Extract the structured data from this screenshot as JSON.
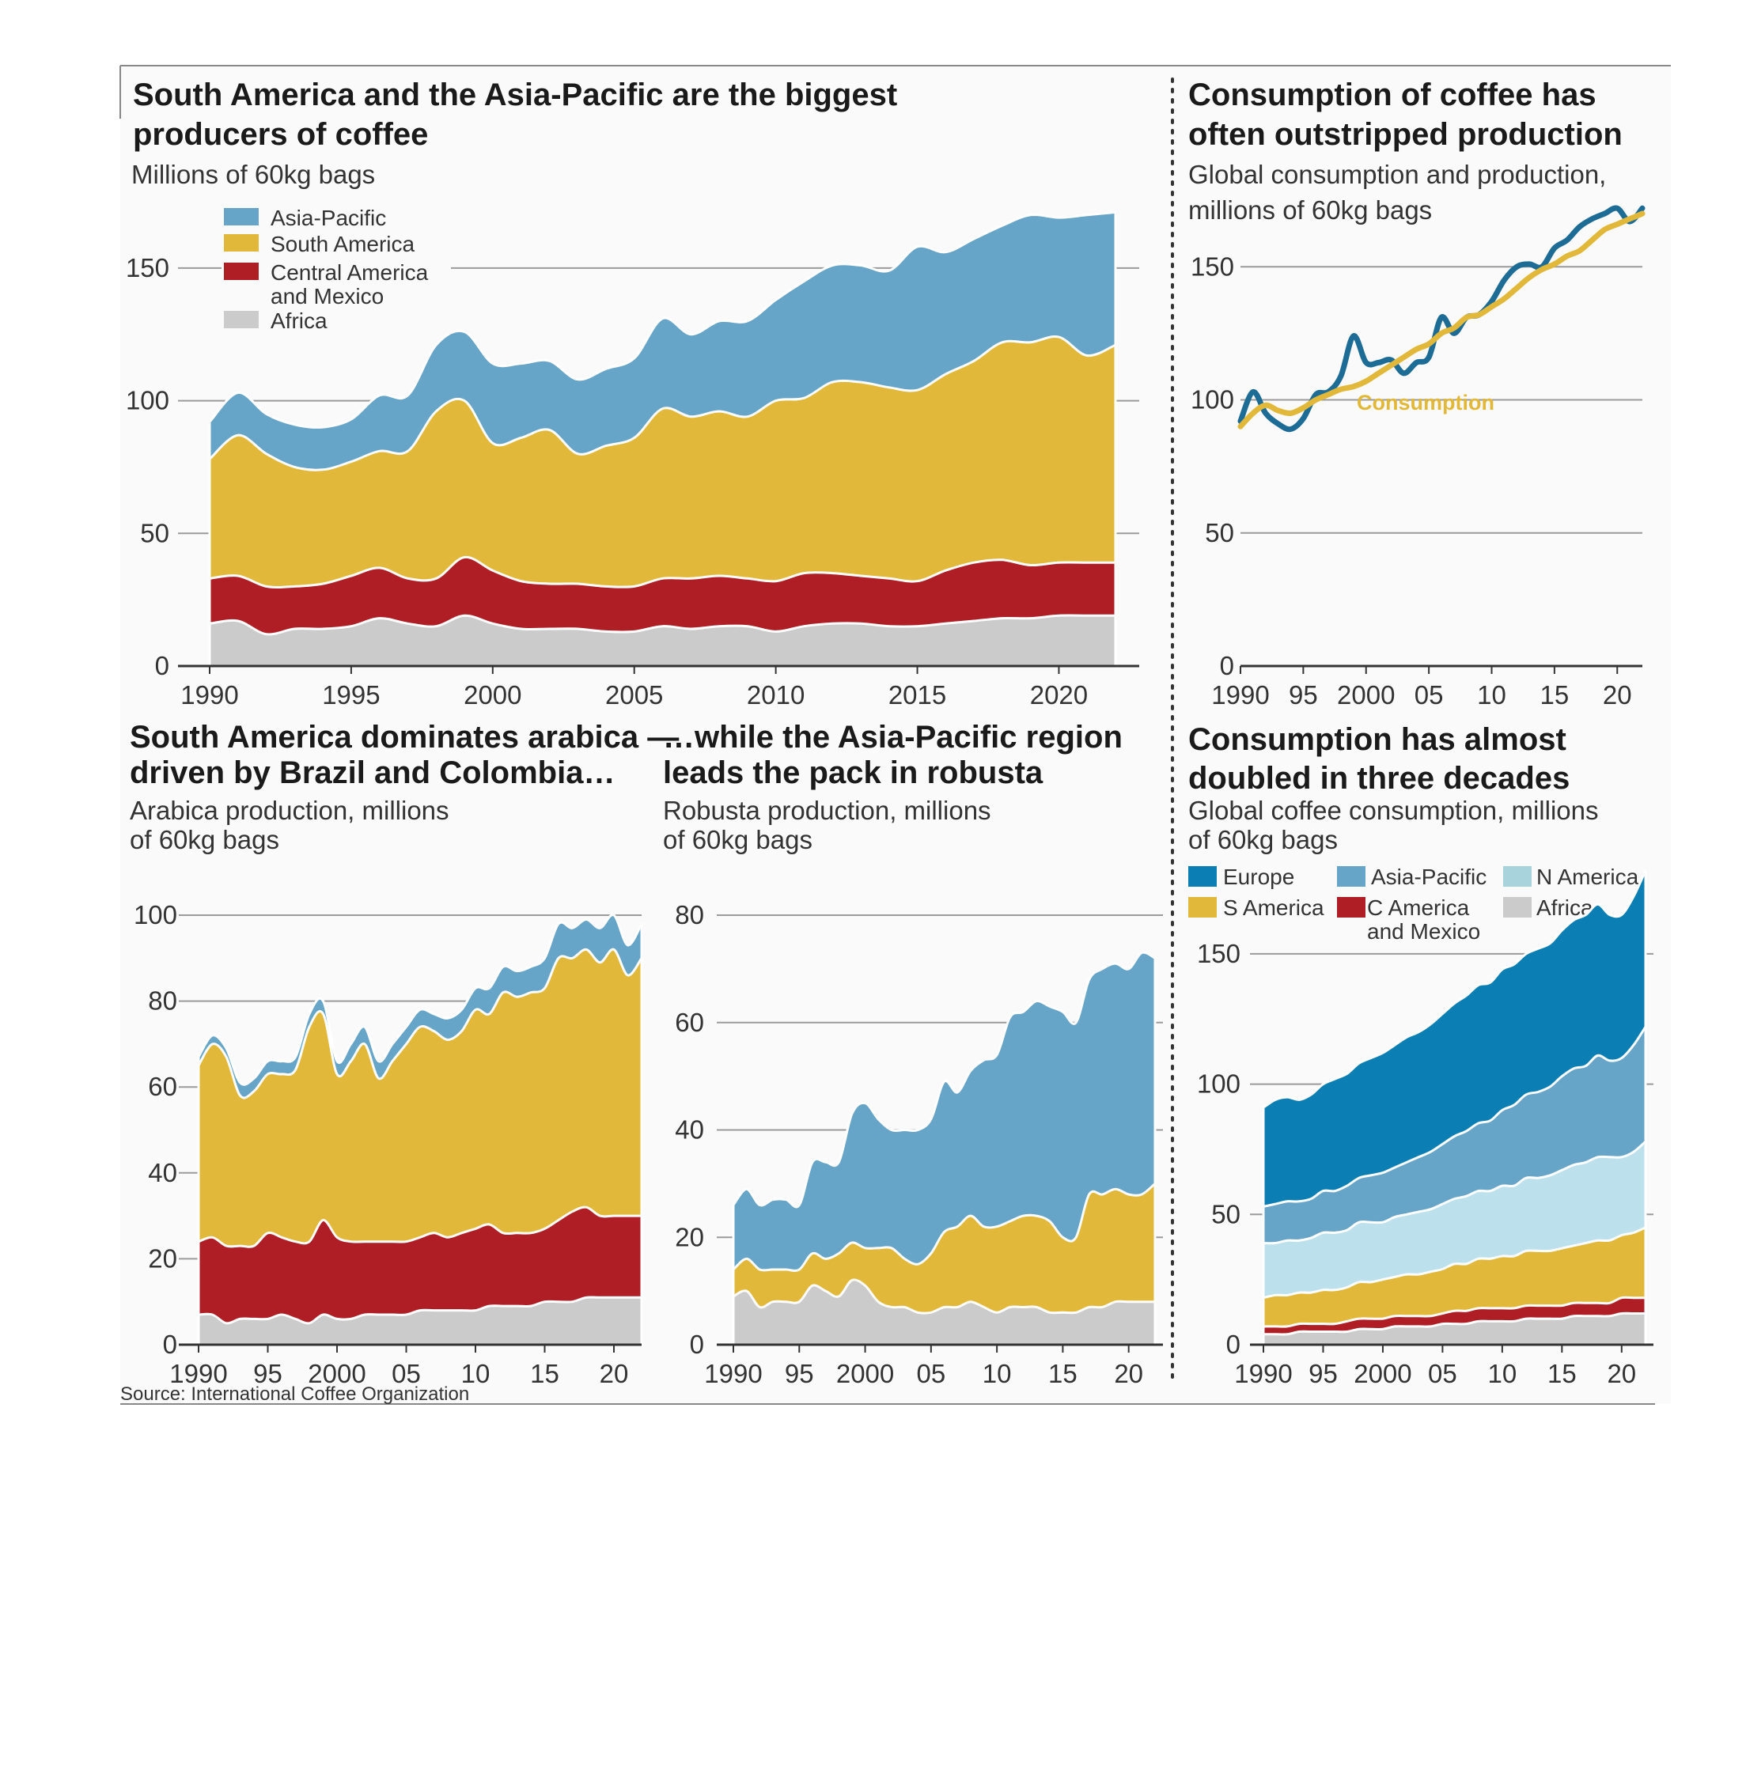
{
  "source": "Source: International Coffee Organization",
  "colors": {
    "asia_pacific": "#67a5c8",
    "south_america": "#e2b83a",
    "central_america": "#ae1e24",
    "africa": "#cbcbcb",
    "europe": "#0b7fb3",
    "n_america": "#bde1ec",
    "production_line": "#1d6c95",
    "consumption_line": "#e2b83a"
  },
  "chart_data": [
    {
      "id": "production",
      "type": "area",
      "stacked": true,
      "title": "South America and the Asia-Pacific are the biggest producers of coffee",
      "subtitle": "Millions of 60kg bags",
      "x": [
        1990,
        1991,
        1992,
        1993,
        1994,
        1995,
        1996,
        1997,
        1998,
        1999,
        2000,
        2001,
        2002,
        2003,
        2004,
        2005,
        2006,
        2007,
        2008,
        2009,
        2010,
        2011,
        2012,
        2013,
        2014,
        2015,
        2016,
        2017,
        2018,
        2019,
        2020,
        2021,
        2022
      ],
      "xticks": [
        "1990",
        "1995",
        "2000",
        "2005",
        "2010",
        "2015",
        "2020"
      ],
      "yticks": [
        "0",
        "50",
        "100",
        "150"
      ],
      "ylim": [
        0,
        175
      ],
      "grid": true,
      "legend": "top-left",
      "series": [
        {
          "name": "Africa",
          "color": "#cbcbcb",
          "values": [
            16,
            17,
            12,
            14,
            14,
            15,
            18,
            16,
            15,
            19,
            16,
            14,
            14,
            14,
            13,
            13,
            15,
            14,
            15,
            15,
            13,
            15,
            16,
            16,
            15,
            15,
            16,
            17,
            18,
            18,
            19,
            19,
            19
          ]
        },
        {
          "name": "Central America and Mexico",
          "values": [
            17,
            17,
            18,
            16,
            17,
            19,
            19,
            17,
            18,
            22,
            20,
            18,
            17,
            17,
            17,
            17,
            18,
            19,
            19,
            18,
            19,
            20,
            19,
            18,
            18,
            17,
            20,
            22,
            22,
            20,
            20,
            20,
            20
          ]
        },
        {
          "name": "South America",
          "values": [
            45,
            53,
            50,
            45,
            43,
            43,
            44,
            48,
            63,
            59,
            48,
            54,
            58,
            49,
            53,
            56,
            64,
            61,
            62,
            61,
            68,
            66,
            72,
            73,
            72,
            72,
            74,
            76,
            82,
            84,
            85,
            78,
            82
          ]
        },
        {
          "name": "Asia-Pacific",
          "values": [
            14,
            16,
            15,
            16,
            16,
            16,
            21,
            21,
            25,
            26,
            30,
            28,
            26,
            28,
            29,
            30,
            34,
            31,
            34,
            36,
            38,
            44,
            44,
            44,
            44,
            54,
            46,
            46,
            44,
            48,
            45,
            53,
            50
          ]
        }
      ]
    },
    {
      "id": "consumption_vs_production",
      "type": "line",
      "title": "Consumption of coffee has often outstripped production",
      "subtitle": "Global consumption and production, millions of 60kg bags",
      "x": [
        1990,
        1991,
        1992,
        1993,
        1994,
        1995,
        1996,
        1997,
        1998,
        1999,
        2000,
        2001,
        2002,
        2003,
        2004,
        2005,
        2006,
        2007,
        2008,
        2009,
        2010,
        2011,
        2012,
        2013,
        2014,
        2015,
        2016,
        2017,
        2018,
        2019,
        2020,
        2021,
        2022
      ],
      "xticks": [
        "1990",
        "95",
        "2000",
        "05",
        "10",
        "15",
        "20"
      ],
      "yticks": [
        "0",
        "50",
        "100",
        "150"
      ],
      "ylim": [
        0,
        170
      ],
      "grid": true,
      "series": [
        {
          "name": "",
          "color": "#1d6c95",
          "values": [
            92,
            103,
            95,
            91,
            89,
            93,
            102,
            103,
            109,
            124,
            114,
            114,
            115,
            110,
            114,
            116,
            131,
            125,
            131,
            132,
            137,
            145,
            150,
            151,
            150,
            157,
            160,
            165,
            168,
            170,
            172,
            167,
            172
          ]
        },
        {
          "name": "Consumption",
          "color": "#e2b83a",
          "values": [
            90,
            95,
            98,
            96,
            95,
            97,
            100,
            102,
            104,
            105,
            107,
            110,
            113,
            116,
            119,
            121,
            125,
            127,
            131,
            132,
            135,
            138,
            142,
            146,
            149,
            151,
            154,
            156,
            160,
            164,
            166,
            168,
            170
          ]
        }
      ]
    },
    {
      "id": "arabica",
      "type": "area",
      "stacked": true,
      "title": "South America dominates arabica — driven by Brazil and Colombia…",
      "subtitle": "Arabica production, millions of 60kg bags",
      "x": [
        1990,
        1991,
        1992,
        1993,
        1994,
        1995,
        1996,
        1997,
        1998,
        1999,
        2000,
        2001,
        2002,
        2003,
        2004,
        2005,
        2006,
        2007,
        2008,
        2009,
        2010,
        2011,
        2012,
        2013,
        2014,
        2015,
        2016,
        2017,
        2018,
        2019,
        2020,
        2021,
        2022
      ],
      "xticks": [
        "1990",
        "95",
        "2000",
        "05",
        "10",
        "15",
        "20"
      ],
      "yticks": [
        "0",
        "20",
        "40",
        "60",
        "80",
        "100"
      ],
      "ylim": [
        0,
        100
      ],
      "grid": true,
      "series": [
        {
          "name": "Africa",
          "values": [
            7,
            7,
            5,
            6,
            6,
            6,
            7,
            6,
            5,
            7,
            6,
            6,
            7,
            7,
            7,
            7,
            8,
            8,
            8,
            8,
            8,
            9,
            9,
            9,
            9,
            10,
            10,
            10,
            11,
            11,
            11,
            11,
            11
          ]
        },
        {
          "name": "Central America and Mexico",
          "values": [
            17,
            18,
            18,
            17,
            17,
            20,
            18,
            18,
            19,
            22,
            19,
            18,
            17,
            17,
            17,
            17,
            17,
            18,
            17,
            18,
            19,
            19,
            17,
            17,
            17,
            17,
            19,
            21,
            21,
            19,
            19,
            19,
            19
          ]
        },
        {
          "name": "South America",
          "values": [
            41,
            45,
            44,
            35,
            36,
            37,
            38,
            40,
            50,
            48,
            38,
            42,
            46,
            38,
            42,
            46,
            49,
            47,
            46,
            47,
            51,
            49,
            56,
            55,
            56,
            56,
            61,
            59,
            60,
            59,
            62,
            56,
            60
          ]
        },
        {
          "name": "Asia-Pacific",
          "values": [
            2,
            2,
            2,
            3,
            3,
            3,
            3,
            3,
            3,
            3,
            3,
            4,
            4,
            4,
            4,
            4,
            4,
            4,
            5,
            5,
            5,
            6,
            6,
            6,
            6,
            7,
            8,
            7,
            7,
            8,
            8,
            7,
            8
          ]
        }
      ]
    },
    {
      "id": "robusta",
      "type": "area",
      "stacked": true,
      "title": "…while the Asia-Pacific region leads the pack in robusta",
      "subtitle": "Robusta production, millions of 60kg bags",
      "x": [
        1990,
        1991,
        1992,
        1993,
        1994,
        1995,
        1996,
        1997,
        1998,
        1999,
        2000,
        2001,
        2002,
        2003,
        2004,
        2005,
        2006,
        2007,
        2008,
        2009,
        2010,
        2011,
        2012,
        2013,
        2014,
        2015,
        2016,
        2017,
        2018,
        2019,
        2020,
        2021,
        2022
      ],
      "xticks": [
        "1990",
        "95",
        "2000",
        "05",
        "10",
        "15",
        "20"
      ],
      "yticks": [
        "0",
        "20",
        "40",
        "60",
        "80"
      ],
      "ylim": [
        0,
        80
      ],
      "grid": true,
      "series": [
        {
          "name": "Africa",
          "values": [
            9,
            10,
            7,
            8,
            8,
            8,
            11,
            10,
            9,
            12,
            11,
            8,
            7,
            7,
            6,
            6,
            7,
            7,
            8,
            7,
            6,
            7,
            7,
            7,
            6,
            6,
            6,
            7,
            7,
            8,
            8,
            8,
            8
          ]
        },
        {
          "name": "South America",
          "values": [
            5,
            6,
            7,
            6,
            6,
            6,
            6,
            6,
            8,
            7,
            7,
            10,
            11,
            9,
            9,
            11,
            14,
            15,
            16,
            15,
            16,
            16,
            17,
            17,
            17,
            14,
            14,
            21,
            21,
            21,
            20,
            20,
            22
          ]
        },
        {
          "name": "Asia-Pacific",
          "values": [
            12,
            13,
            12,
            13,
            13,
            12,
            17,
            18,
            17,
            24,
            27,
            24,
            22,
            24,
            25,
            25,
            28,
            25,
            27,
            31,
            32,
            38,
            38,
            40,
            40,
            42,
            40,
            40,
            42,
            42,
            42,
            45,
            42
          ]
        }
      ]
    },
    {
      "id": "consumption_by_region",
      "type": "area",
      "stacked": true,
      "title": "Consumption has almost doubled in three decades",
      "subtitle": "Global coffee consumption, millions of 60kg bags",
      "x": [
        1990,
        1991,
        1992,
        1993,
        1994,
        1995,
        1996,
        1997,
        1998,
        1999,
        2000,
        2001,
        2002,
        2003,
        2004,
        2005,
        2006,
        2007,
        2008,
        2009,
        2010,
        2011,
        2012,
        2013,
        2014,
        2015,
        2016,
        2017,
        2018,
        2019,
        2020,
        2021,
        2022
      ],
      "xticks": [
        "1990",
        "95",
        "2000",
        "05",
        "10",
        "15",
        "20"
      ],
      "yticks": [
        "0",
        "50",
        "100",
        "150"
      ],
      "ylim": [
        0,
        170
      ],
      "grid": true,
      "legend": "top",
      "series": [
        {
          "name": "Africa",
          "values": [
            4,
            4,
            4,
            5,
            5,
            5,
            5,
            5,
            6,
            6,
            6,
            7,
            7,
            7,
            7,
            8,
            8,
            8,
            9,
            9,
            9,
            9,
            10,
            10,
            10,
            10,
            11,
            11,
            11,
            11,
            12,
            12,
            12
          ]
        },
        {
          "name": "C America and Mexico",
          "values": [
            3,
            3,
            3,
            3,
            3,
            3,
            3,
            4,
            4,
            4,
            4,
            4,
            4,
            4,
            4,
            4,
            5,
            5,
            5,
            5,
            5,
            5,
            5,
            5,
            5,
            5,
            5,
            5,
            5,
            5,
            6,
            6,
            6
          ]
        },
        {
          "name": "S America",
          "values": [
            11,
            12,
            12,
            12,
            12,
            13,
            13,
            13,
            14,
            14,
            15,
            15,
            16,
            16,
            17,
            17,
            18,
            18,
            19,
            19,
            20,
            20,
            21,
            21,
            21,
            22,
            22,
            23,
            24,
            24,
            24,
            25,
            27
          ]
        },
        {
          "name": "N America",
          "values": [
            21,
            20,
            21,
            20,
            21,
            22,
            22,
            22,
            23,
            23,
            22,
            23,
            23,
            24,
            24,
            25,
            25,
            26,
            26,
            26,
            27,
            27,
            28,
            28,
            29,
            30,
            31,
            31,
            32,
            32,
            30,
            31,
            33
          ]
        },
        {
          "name": "Asia-Pacific",
          "values": [
            14,
            15,
            15,
            15,
            15,
            16,
            16,
            17,
            17,
            18,
            19,
            19,
            20,
            21,
            22,
            23,
            24,
            25,
            26,
            27,
            29,
            31,
            32,
            33,
            34,
            36,
            37,
            37,
            39,
            37,
            38,
            41,
            44
          ]
        },
        {
          "name": "Europe",
          "values": [
            38,
            40,
            40,
            39,
            40,
            41,
            43,
            43,
            44,
            45,
            46,
            47,
            48,
            48,
            49,
            50,
            51,
            52,
            53,
            53,
            54,
            54,
            54,
            55,
            55,
            56,
            57,
            58,
            58,
            56,
            55,
            57,
            60
          ]
        }
      ]
    }
  ],
  "legends": {
    "production": [
      "Asia-Pacific",
      "South America",
      "Central America",
      "and Mexico",
      "Africa"
    ],
    "consumption_by_region": [
      "Europe",
      "Asia-Pacific",
      "N America",
      "S America",
      "C America",
      "and Mexico",
      "Africa"
    ]
  },
  "annotations": {
    "consumption_label": "Consumption"
  }
}
